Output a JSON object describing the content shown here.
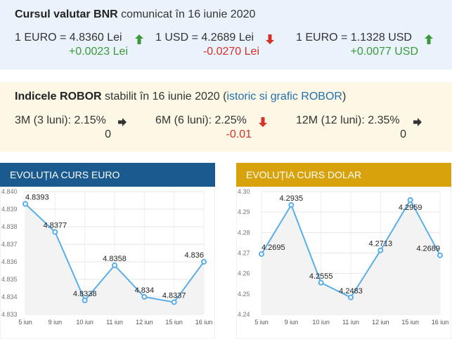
{
  "bnr": {
    "title_bold": "Cursul valutar BNR",
    "title_rest": " comunicat în 16 iunie 2020",
    "rates": [
      {
        "label": "1 EURO = 4.8360 Lei",
        "change": "+0.0023 Lei",
        "direction": "up"
      },
      {
        "label": "1 USD = 4.2689 Lei",
        "change": "-0.0270 Lei",
        "direction": "down"
      },
      {
        "label": "1 EURO = 1.1328 USD",
        "change": "+0.0077 USD",
        "direction": "up"
      }
    ]
  },
  "robor": {
    "title_bold": "Indicele ROBOR",
    "title_rest": " stabilit în 16 iunie 2020 (",
    "link": "istoric si grafic ROBOR",
    "title_end": ")",
    "rates": [
      {
        "label": "3M (3 luni): 2.15%",
        "change": "0",
        "direction": "flat"
      },
      {
        "label": "6M (6 luni): 2.25%",
        "change": "-0.01",
        "direction": "down"
      },
      {
        "label": "12M (12 luni): 2.35%",
        "change": "0",
        "direction": "flat"
      }
    ]
  },
  "colors": {
    "up": "#3a9a3a",
    "down": "#d9302a",
    "flat": "#333333",
    "line": "#5aaee8",
    "euro_header": "#1a5a8e",
    "usd_header": "#d8a20c"
  },
  "chart_data": [
    {
      "type": "line",
      "title": "EVOLUȚIA CURS EURO",
      "x": [
        "5 iun",
        "9 iun",
        "10 iun",
        "11 iun",
        "12 iun",
        "15 iun",
        "16 iun"
      ],
      "values": [
        4.8393,
        4.8377,
        4.8338,
        4.8358,
        4.834,
        4.8337,
        4.836
      ],
      "data_labels": [
        "4.8393",
        "4.8377",
        "4.8338",
        "4.8358",
        "4.834",
        "4.8337",
        "4.836"
      ],
      "yticks": [
        "4.840",
        "4.839",
        "4.838",
        "4.837",
        "4.836",
        "4.835",
        "4.834",
        "4.833"
      ],
      "ylim": [
        4.833,
        4.84
      ],
      "grid": true
    },
    {
      "type": "line",
      "title": "EVOLUȚIA CURS DOLAR",
      "x": [
        "5 iun",
        "9 iun",
        "10 iun",
        "11 iun",
        "12 iun",
        "15 iun",
        "16 iun"
      ],
      "values": [
        4.2695,
        4.2935,
        4.2555,
        4.2483,
        4.2713,
        4.2959,
        4.2689
      ],
      "data_labels": [
        "4.2695",
        "4.2935",
        "4.2555",
        "4.2483",
        "4.2713",
        "4.2959",
        "4.2689"
      ],
      "yticks": [
        "4.30",
        "4.29",
        "4.28",
        "4.27",
        "4.26",
        "4.25",
        "4.24"
      ],
      "ylim": [
        4.24,
        4.3
      ],
      "grid": true
    }
  ]
}
